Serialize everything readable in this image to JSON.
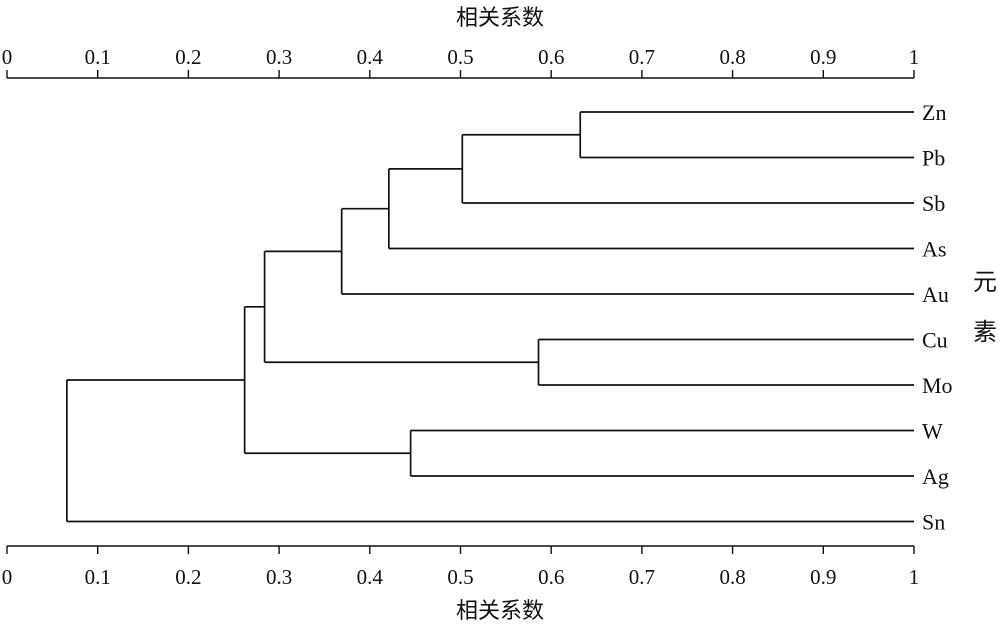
{
  "chart_data": {
    "type": "dendrogram",
    "title": "",
    "xlabel_top": "相关系数",
    "xlabel_bottom": "相关系数",
    "ylabel_chars": [
      "元",
      "素"
    ],
    "xlim": [
      0,
      1
    ],
    "ticks": [
      0,
      0.1,
      0.2,
      0.3,
      0.4,
      0.5,
      0.6,
      0.7,
      0.8,
      0.9,
      1
    ],
    "tick_labels": [
      "0",
      "0.1",
      "0.2",
      "0.3",
      "0.4",
      "0.5",
      "0.6",
      "0.7",
      "0.8",
      "0.9",
      "1"
    ],
    "leaves": [
      "Zn",
      "Pb",
      "Sb",
      "As",
      "Au",
      "Cu",
      "Mo",
      "W",
      "Ag",
      "Sn"
    ],
    "merges": [
      {
        "left": "Zn",
        "right": "Pb",
        "similarity": 0.632
      },
      {
        "left": "Cu",
        "right": "Mo",
        "similarity": 0.586
      },
      {
        "left": "Zn+Pb",
        "right": "Sb",
        "similarity": 0.502
      },
      {
        "left": "W",
        "right": "Ag",
        "similarity": 0.445
      },
      {
        "left": "Zn+Pb+Sb",
        "right": "As",
        "similarity": 0.421
      },
      {
        "left": "Zn+Pb+Sb+As",
        "right": "Au",
        "similarity": 0.369
      },
      {
        "left": "Zn+Pb+Sb+As+Au",
        "right": "Cu+Mo",
        "similarity": 0.284
      },
      {
        "left": "Zn+Pb+Sb+As+Au+Cu+Mo",
        "right": "W+Ag",
        "similarity": 0.262
      },
      {
        "left": "Zn+Pb+Sb+As+Au+Cu+Mo+W+Ag",
        "right": "Sn",
        "similarity": 0.066
      }
    ]
  }
}
